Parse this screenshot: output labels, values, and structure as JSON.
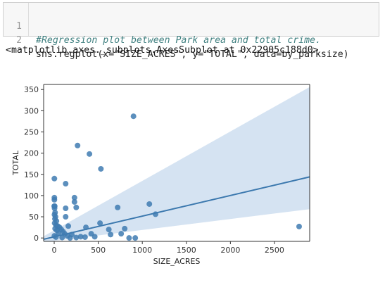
{
  "code_cell": {
    "lines": [
      {
        "number": "1",
        "text": "#Regression plot between Park area and total crime."
      },
      {
        "number": "2",
        "text": "sns.regplot(x=\"SIZE_ACRES\", y=\"TOTAL\", data=by_parksize)"
      }
    ]
  },
  "output": {
    "text": "<matplotlib.axes._subplots.AxesSubplot at 0x22905c188d0>"
  },
  "chart_data": {
    "type": "scatter",
    "xlabel": "SIZE_ACRES",
    "ylabel": "TOTAL",
    "xlim": [
      -120,
      2900
    ],
    "ylim": [
      -8,
      362
    ],
    "xticks": [
      0,
      500,
      1000,
      1500,
      2000,
      2500
    ],
    "yticks": [
      0,
      50,
      100,
      150,
      200,
      250,
      300,
      350
    ],
    "grid": false,
    "colors": {
      "points": "#3f7bb1",
      "regression_line": "#3b78ae",
      "confidence_band": "#c7daed"
    },
    "regression": {
      "x": [
        -120,
        2900
      ],
      "y": [
        -3,
        144
      ],
      "ci_lower": [
        -10,
        68
      ],
      "ci_upper": [
        4,
        356
      ]
    },
    "points": [
      [
        2,
        140
      ],
      [
        2,
        95
      ],
      [
        2,
        90
      ],
      [
        0,
        75
      ],
      [
        6,
        75
      ],
      [
        4,
        70
      ],
      [
        10,
        60
      ],
      [
        3,
        55
      ],
      [
        15,
        50
      ],
      [
        8,
        45
      ],
      [
        25,
        40
      ],
      [
        5,
        35
      ],
      [
        20,
        30
      ],
      [
        40,
        28
      ],
      [
        60,
        25
      ],
      [
        10,
        22
      ],
      [
        80,
        20
      ],
      [
        30,
        18
      ],
      [
        100,
        15
      ],
      [
        50,
        12
      ],
      [
        120,
        10
      ],
      [
        200,
        8
      ],
      [
        2,
        5
      ],
      [
        150,
        5
      ],
      [
        300,
        3
      ],
      [
        20,
        2
      ],
      [
        90,
        1
      ],
      [
        350,
        2
      ],
      [
        250,
        1
      ],
      [
        180,
        0
      ],
      [
        130,
        128
      ],
      [
        130,
        70
      ],
      [
        130,
        50
      ],
      [
        160,
        28
      ],
      [
        230,
        95
      ],
      [
        230,
        85
      ],
      [
        250,
        72
      ],
      [
        265,
        218
      ],
      [
        400,
        198
      ],
      [
        530,
        163
      ],
      [
        900,
        287
      ],
      [
        360,
        25
      ],
      [
        420,
        10
      ],
      [
        460,
        3
      ],
      [
        520,
        35
      ],
      [
        620,
        20
      ],
      [
        640,
        8
      ],
      [
        720,
        72
      ],
      [
        760,
        10
      ],
      [
        800,
        22
      ],
      [
        850,
        0
      ],
      [
        920,
        0
      ],
      [
        1080,
        80
      ],
      [
        1150,
        56
      ],
      [
        2780,
        27
      ]
    ]
  }
}
